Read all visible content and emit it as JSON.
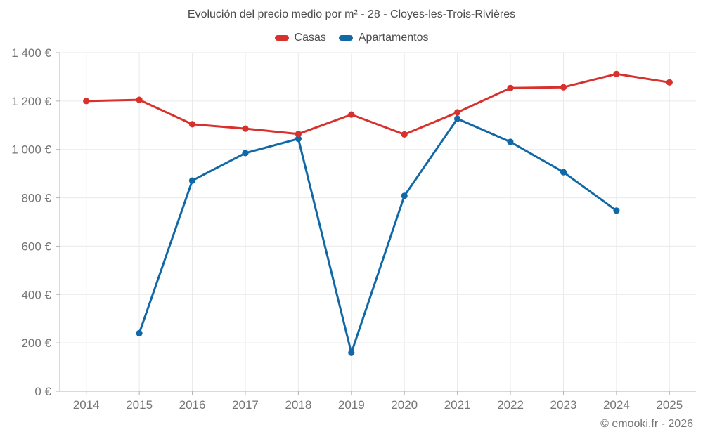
{
  "chart_data": {
    "type": "line",
    "title": "Evolución del precio medio por m² - 28 - Cloyes-les-Trois-Rivières",
    "categories": [
      "2014",
      "2015",
      "2016",
      "2017",
      "2018",
      "2019",
      "2020",
      "2021",
      "2022",
      "2023",
      "2024",
      "2025"
    ],
    "series": [
      {
        "name": "Casas",
        "color": "#d8312d",
        "values": [
          1200,
          1205,
          1104,
          1086,
          1064,
          1144,
          1062,
          1153,
          1254,
          1257,
          1312,
          1277
        ]
      },
      {
        "name": "Apartamentos",
        "color": "#1168a6",
        "values": [
          null,
          240,
          871,
          985,
          1044,
          159,
          808,
          1127,
          1031,
          906,
          747,
          null
        ]
      }
    ],
    "xlabel": "",
    "ylabel": "",
    "ylim": [
      0,
      1400
    ],
    "y_ticks": [
      0,
      200,
      400,
      600,
      800,
      1000,
      1200,
      1400
    ],
    "y_tick_labels": [
      "0 €",
      "200 €",
      "400 €",
      "600 €",
      "800 €",
      "1 000 €",
      "1 200 €",
      "1 400 €"
    ],
    "grid": true,
    "legend_position": "top",
    "currency_unit": "€"
  },
  "footer": {
    "copyright": "© emooki.fr - 2026"
  },
  "theme": {
    "axis_line_color": "#b3b3b3",
    "grid_color": "#e9e9e9",
    "tick_label_color": "#757575",
    "title_color": "#4c4c4c"
  }
}
